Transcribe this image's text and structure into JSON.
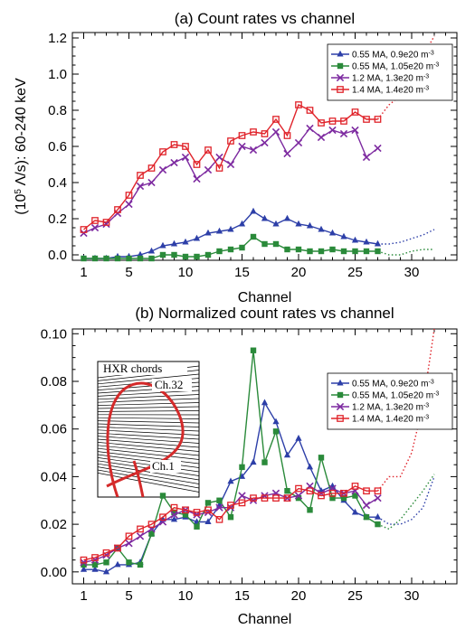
{
  "chart_data": [
    {
      "type": "line",
      "title": "(a) Count rates vs channel",
      "xlabel": "Channel",
      "ylabel": "(10^5 Λ/s): 60-240 keV",
      "ylabel_parts": {
        "pre": "(10",
        "sup": "5",
        "post": " Λ/s): 60-240 keV"
      },
      "xlim": [
        0,
        34
      ],
      "ylim": [
        -0.03,
        1.23
      ],
      "xticks": [
        1,
        5,
        10,
        15,
        20,
        25,
        30
      ],
      "xtick_labels": [
        "1",
        "5",
        "10",
        "15",
        "20",
        "25",
        "30"
      ],
      "yticks": [
        0,
        0.2,
        0.4,
        0.6,
        0.8,
        1.0,
        1.2
      ],
      "ytick_labels": [
        "0.0",
        "0.2",
        "0.4",
        "0.6",
        "0.8",
        "1.0",
        "1.2"
      ],
      "legend_position": "top-right",
      "series": [
        {
          "name": "0.55 MA, 0.9e20 m-3",
          "legend_pre": "0.55 MA, 0.9e20 m",
          "legend_sup": "-3",
          "color": "#2d3fa8",
          "marker": "triangle",
          "x": [
            1,
            2,
            3,
            4,
            5,
            6,
            7,
            8,
            9,
            10,
            11,
            12,
            13,
            14,
            15,
            16,
            17,
            18,
            19,
            20,
            21,
            22,
            23,
            24,
            25,
            26,
            27
          ],
          "y": [
            -0.02,
            -0.02,
            -0.02,
            -0.01,
            -0.01,
            0.0,
            0.02,
            0.05,
            0.06,
            0.07,
            0.09,
            0.12,
            0.13,
            0.14,
            0.17,
            0.24,
            0.2,
            0.17,
            0.2,
            0.17,
            0.16,
            0.14,
            0.12,
            0.1,
            0.08,
            0.07,
            0.06
          ],
          "dotted_x": [
            27,
            28,
            29,
            30,
            31,
            32
          ],
          "dotted_y": [
            0.06,
            0.06,
            0.07,
            0.09,
            0.11,
            0.14
          ]
        },
        {
          "name": "0.55 MA, 1.05e20 m-3",
          "legend_pre": "0.55 MA, 1.05e20 m",
          "legend_sup": "-3",
          "color": "#2a8a3a",
          "marker": "square",
          "x": [
            1,
            2,
            3,
            4,
            5,
            6,
            7,
            8,
            9,
            10,
            11,
            12,
            13,
            14,
            15,
            16,
            17,
            18,
            19,
            20,
            21,
            22,
            23,
            24,
            25,
            26,
            27
          ],
          "y": [
            -0.02,
            -0.02,
            -0.02,
            -0.02,
            -0.02,
            -0.02,
            -0.02,
            0.0,
            0.0,
            -0.01,
            -0.01,
            0.0,
            0.02,
            0.03,
            0.04,
            0.1,
            0.06,
            0.06,
            0.03,
            0.03,
            0.02,
            0.02,
            0.03,
            0.02,
            0.02,
            0.02,
            0.02
          ],
          "dotted_x": [
            27,
            28,
            29,
            30,
            31,
            32
          ],
          "dotted_y": [
            0.02,
            0.0,
            0.0,
            0.02,
            0.03,
            0.03
          ]
        },
        {
          "name": "1.2 MA, 1.3e20 m-3",
          "legend_pre": "1.2 MA, 1.3e20 m",
          "legend_sup": "-3",
          "color": "#7d2aa0",
          "marker": "x",
          "x": [
            1,
            2,
            3,
            4,
            5,
            6,
            7,
            8,
            9,
            10,
            11,
            12,
            13,
            14,
            15,
            16,
            17,
            18,
            19,
            20,
            21,
            22,
            23,
            24,
            25,
            26,
            27
          ],
          "y": [
            0.12,
            0.15,
            0.17,
            0.23,
            0.28,
            0.38,
            0.4,
            0.47,
            0.51,
            0.54,
            0.42,
            0.47,
            0.54,
            0.5,
            0.6,
            0.58,
            0.62,
            0.68,
            0.56,
            0.62,
            0.7,
            0.65,
            0.69,
            0.67,
            0.69,
            0.54,
            0.59
          ],
          "dotted_x": [],
          "dotted_y": []
        },
        {
          "name": "1.4 MA, 1.4e20 m-3",
          "legend_pre": "1.4 MA, 1.4e20 m",
          "legend_sup": "-3",
          "color": "#e0232a",
          "marker": "square-open",
          "x": [
            1,
            2,
            3,
            4,
            5,
            6,
            7,
            8,
            9,
            10,
            11,
            12,
            13,
            14,
            15,
            16,
            17,
            18,
            19,
            20,
            21,
            22,
            23,
            24,
            25,
            26,
            27
          ],
          "y": [
            0.14,
            0.19,
            0.18,
            0.25,
            0.33,
            0.44,
            0.48,
            0.57,
            0.61,
            0.6,
            0.5,
            0.58,
            0.48,
            0.63,
            0.66,
            0.68,
            0.67,
            0.75,
            0.66,
            0.83,
            0.8,
            0.73,
            0.74,
            0.74,
            0.79,
            0.75,
            0.75
          ],
          "dotted_x": [
            27,
            28,
            29,
            30,
            31,
            32
          ],
          "dotted_y": [
            0.75,
            0.83,
            0.88,
            0.98,
            1.1,
            1.21
          ]
        }
      ]
    },
    {
      "type": "line",
      "title": "(b) Normalized count rates vs channel",
      "xlabel": "Channel",
      "ylabel": "",
      "xlim": [
        0,
        34
      ],
      "ylim": [
        -0.005,
        0.102
      ],
      "xticks": [
        1,
        5,
        10,
        15,
        20,
        25,
        30
      ],
      "xtick_labels": [
        "1",
        "5",
        "10",
        "15",
        "20",
        "25",
        "30"
      ],
      "yticks": [
        0,
        0.02,
        0.04,
        0.06,
        0.08,
        0.1
      ],
      "ytick_labels": [
        "0.00",
        "0.02",
        "0.04",
        "0.06",
        "0.08",
        "0.10"
      ],
      "legend_position": "top-right",
      "inset": {
        "title": "HXR chords",
        "top_label": "Ch.32",
        "bottom_label": "Ch.1"
      },
      "series": [
        {
          "name": "0.55 MA, 0.9e20 m-3",
          "legend_pre": "0.55 MA, 0.9e20 m",
          "legend_sup": "-3",
          "color": "#2d3fa8",
          "marker": "triangle",
          "x": [
            1,
            2,
            3,
            4,
            5,
            6,
            7,
            8,
            9,
            10,
            11,
            12,
            13,
            14,
            15,
            16,
            17,
            18,
            19,
            20,
            21,
            22,
            23,
            24,
            25,
            26,
            27
          ],
          "y": [
            0.001,
            0.001,
            0.0,
            0.003,
            0.003,
            0.004,
            0.016,
            0.022,
            0.022,
            0.023,
            0.021,
            0.021,
            0.028,
            0.038,
            0.04,
            0.046,
            0.071,
            0.063,
            0.049,
            0.056,
            0.044,
            0.034,
            0.036,
            0.03,
            0.025,
            0.023,
            0.023
          ],
          "dotted_x": [
            27,
            28,
            29,
            30,
            31,
            32
          ],
          "dotted_y": [
            0.023,
            0.02,
            0.02,
            0.022,
            0.027,
            0.04
          ]
        },
        {
          "name": "0.55 MA, 1.05e20 m-3",
          "legend_pre": "0.55 MA, 1.05e20 m",
          "legend_sup": "-3",
          "color": "#2a8a3a",
          "marker": "square",
          "x": [
            1,
            2,
            3,
            4,
            5,
            6,
            7,
            8,
            9,
            10,
            11,
            12,
            13,
            14,
            15,
            16,
            17,
            18,
            19,
            20,
            21,
            22,
            23,
            24,
            25,
            26,
            27
          ],
          "y": [
            0.003,
            0.003,
            0.004,
            0.01,
            0.004,
            0.003,
            0.016,
            0.032,
            0.025,
            0.024,
            0.019,
            0.029,
            0.03,
            0.023,
            0.044,
            0.093,
            0.046,
            0.059,
            0.034,
            0.031,
            0.026,
            0.048,
            0.031,
            0.031,
            0.032,
            0.023,
            0.02
          ],
          "dotted_x": [
            27,
            28,
            29,
            30,
            31,
            32
          ],
          "dotted_y": [
            0.02,
            0.018,
            0.022,
            0.028,
            0.034,
            0.041
          ]
        },
        {
          "name": "1.2 MA, 1.3e20 m-3",
          "legend_pre": "1.2 MA, 1.3e20 m",
          "legend_sup": "-3",
          "color": "#7d2aa0",
          "marker": "x",
          "x": [
            1,
            2,
            3,
            4,
            5,
            6,
            7,
            8,
            9,
            10,
            11,
            12,
            13,
            14,
            15,
            16,
            17,
            18,
            19,
            20,
            21,
            22,
            23,
            24,
            25,
            26,
            27
          ],
          "y": [
            0.004,
            0.005,
            0.007,
            0.01,
            0.012,
            0.015,
            0.018,
            0.021,
            0.024,
            0.026,
            0.024,
            0.025,
            0.027,
            0.027,
            0.032,
            0.03,
            0.032,
            0.033,
            0.031,
            0.032,
            0.036,
            0.033,
            0.035,
            0.033,
            0.034,
            0.028,
            0.031
          ],
          "dotted_x": [],
          "dotted_y": []
        },
        {
          "name": "1.4 MA, 1.4e20 m-3",
          "legend_pre": "1.4 MA, 1.4e20 m",
          "legend_sup": "-3",
          "color": "#e0232a",
          "marker": "square-open",
          "x": [
            1,
            2,
            3,
            4,
            5,
            6,
            7,
            8,
            9,
            10,
            11,
            12,
            13,
            14,
            15,
            16,
            17,
            18,
            19,
            20,
            21,
            22,
            23,
            24,
            25,
            26,
            27
          ],
          "y": [
            0.005,
            0.006,
            0.008,
            0.01,
            0.015,
            0.018,
            0.02,
            0.023,
            0.027,
            0.026,
            0.025,
            0.026,
            0.022,
            0.028,
            0.029,
            0.031,
            0.031,
            0.031,
            0.031,
            0.035,
            0.034,
            0.032,
            0.033,
            0.033,
            0.036,
            0.034,
            0.034
          ],
          "dotted_x": [
            27,
            28,
            29,
            30,
            31,
            32
          ],
          "dotted_y": [
            0.034,
            0.04,
            0.04,
            0.05,
            0.07,
            0.102
          ]
        }
      ]
    }
  ]
}
